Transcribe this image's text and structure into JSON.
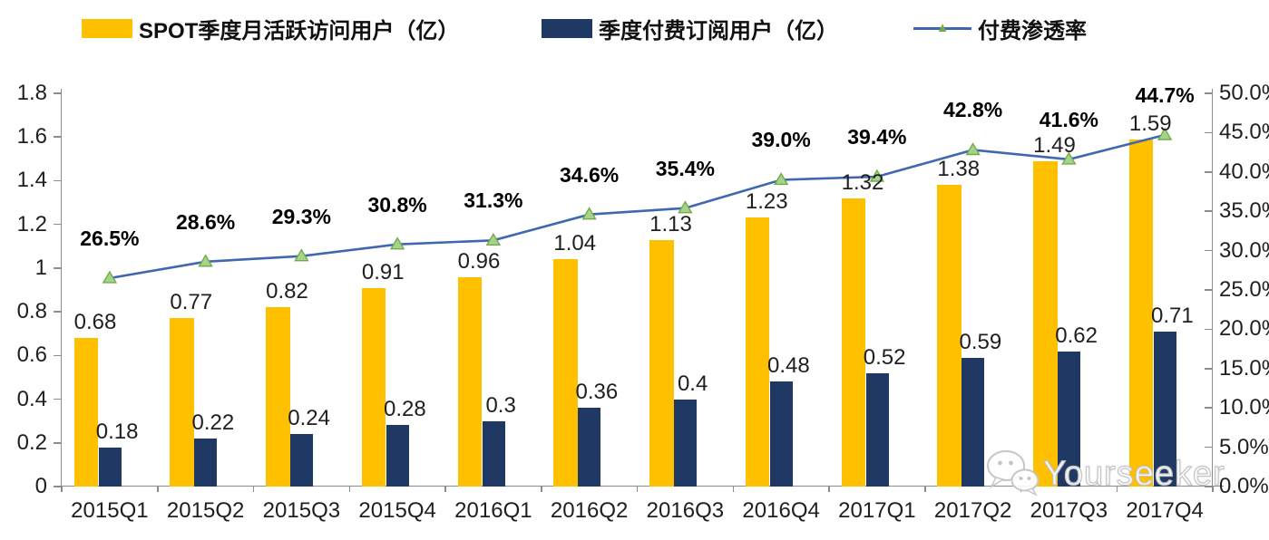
{
  "legend": [
    {
      "label": "SPOT季度月活跃访问用户（亿）",
      "color": "#FFC000",
      "marker": "square"
    },
    {
      "label": "季度付费订阅用户（亿）",
      "color": "#1F3864",
      "marker": "square"
    },
    {
      "label": "付费渗透率",
      "color": "#4067B1",
      "marker": "line-triangle",
      "marker_color": "#70AD47"
    }
  ],
  "chart_data": {
    "type": "combo",
    "categories": [
      "2015Q1",
      "2015Q2",
      "2015Q3",
      "2015Q4",
      "2016Q1",
      "2016Q2",
      "2016Q3",
      "2016Q4",
      "2017Q1",
      "2017Q2",
      "2017Q3",
      "2017Q4"
    ],
    "series": [
      {
        "name": "SPOT季度月活跃访问用户（亿）",
        "type": "bar",
        "axis": "left",
        "color": "#FFC000",
        "values": [
          0.68,
          0.77,
          0.82,
          0.91,
          0.96,
          1.04,
          1.13,
          1.23,
          1.32,
          1.38,
          1.49,
          1.59
        ],
        "labels": [
          "0.68",
          "0.77",
          "0.82",
          "0.91",
          "0.96",
          "1.04",
          "1.13",
          "1.23",
          "1.32",
          "1.38",
          "1.49",
          "1.59"
        ]
      },
      {
        "name": "季度付费订阅用户（亿）",
        "type": "bar",
        "axis": "left",
        "color": "#1F3864",
        "values": [
          0.18,
          0.22,
          0.24,
          0.28,
          0.3,
          0.36,
          0.4,
          0.48,
          0.52,
          0.59,
          0.62,
          0.71
        ],
        "labels": [
          "0.18",
          "0.22",
          "0.24",
          "0.28",
          "0.3",
          "0.36",
          "0.4",
          "0.48",
          "0.52",
          "0.59",
          "0.62",
          "0.71"
        ]
      },
      {
        "name": "付费渗透率",
        "type": "line",
        "axis": "right",
        "color": "#4067B1",
        "marker": "triangle",
        "marker_color": "#70AD47",
        "marker_fill": "#A9D18E",
        "values": [
          26.5,
          28.6,
          29.3,
          30.8,
          31.3,
          34.6,
          35.4,
          39.0,
          39.4,
          42.8,
          41.6,
          44.7
        ],
        "labels": [
          "26.5%",
          "28.6%",
          "29.3%",
          "30.8%",
          "31.3%",
          "34.6%",
          "35.4%",
          "39.0%",
          "39.4%",
          "42.8%",
          "41.6%",
          "44.7%"
        ]
      }
    ],
    "left_axis": {
      "min": 0,
      "max": 1.8,
      "step": 0.2,
      "tick_labels": [
        "0",
        "0.2",
        "0.4",
        "0.6",
        "0.8",
        "1",
        "1.2",
        "1.4",
        "1.6",
        "1.8"
      ]
    },
    "right_axis": {
      "min": 0,
      "max": 50,
      "step": 5,
      "tick_labels": [
        "0.0%",
        "5.0%",
        "10.0%",
        "15.0%",
        "20.0%",
        "25.0%",
        "30.0%",
        "35.0%",
        "40.0%",
        "45.0%",
        "50.0%"
      ]
    },
    "grid": false,
    "legend_position": "top"
  },
  "watermark": {
    "text": "Yourseeker",
    "icon": "wechat-icon"
  }
}
